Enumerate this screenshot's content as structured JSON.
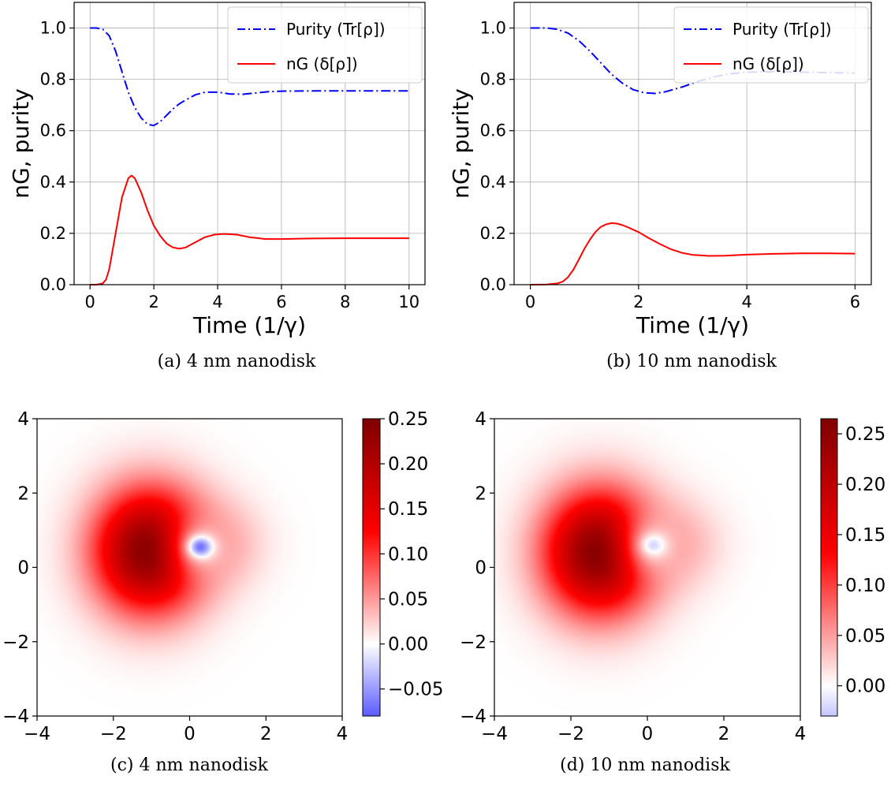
{
  "chart_data": [
    {
      "type": "line",
      "caption": "(a) 4 nm nanodisk",
      "xlabel": "Time (1/γ)",
      "ylabel": "nG, purity",
      "xlim": [
        -0.5,
        10.5
      ],
      "ylim": [
        0.0,
        1.1
      ],
      "xticks": [
        0,
        2,
        4,
        6,
        8,
        10
      ],
      "yticks": [
        0.0,
        0.2,
        0.4,
        0.6,
        0.8,
        1.0
      ],
      "grid": true,
      "legend_position": "top-right",
      "series": [
        {
          "name": "Purity (Tr[ρ])",
          "color": "#0000ff",
          "style": "dash-dot",
          "x": [
            0,
            0.2,
            0.4,
            0.6,
            0.8,
            1.0,
            1.2,
            1.4,
            1.6,
            1.8,
            2.0,
            2.2,
            2.4,
            2.6,
            2.8,
            3.0,
            3.3,
            3.6,
            4.0,
            4.4,
            4.8,
            5.2,
            5.6,
            6.0,
            7.0,
            8.0,
            9.0,
            10.0
          ],
          "y": [
            1.0,
            1.0,
            0.995,
            0.97,
            0.91,
            0.83,
            0.75,
            0.69,
            0.65,
            0.625,
            0.62,
            0.635,
            0.66,
            0.685,
            0.705,
            0.72,
            0.74,
            0.75,
            0.75,
            0.743,
            0.742,
            0.747,
            0.752,
            0.754,
            0.755,
            0.755,
            0.755,
            0.755
          ]
        },
        {
          "name": "nG (δ[ρ])",
          "color": "#ff0000",
          "style": "solid",
          "x": [
            0,
            0.2,
            0.4,
            0.5,
            0.6,
            0.8,
            1.0,
            1.2,
            1.3,
            1.4,
            1.6,
            1.8,
            2.0,
            2.2,
            2.4,
            2.6,
            2.8,
            3.0,
            3.3,
            3.6,
            3.9,
            4.2,
            4.6,
            5.0,
            5.5,
            6.0,
            7.0,
            8.0,
            9.0,
            10.0
          ],
          "y": [
            0.0,
            0.0,
            0.005,
            0.02,
            0.06,
            0.2,
            0.34,
            0.415,
            0.425,
            0.415,
            0.36,
            0.29,
            0.23,
            0.19,
            0.16,
            0.145,
            0.14,
            0.145,
            0.165,
            0.185,
            0.195,
            0.198,
            0.195,
            0.185,
            0.178,
            0.178,
            0.18,
            0.181,
            0.181,
            0.181
          ]
        }
      ]
    },
    {
      "type": "line",
      "caption": "(b) 10 nm nanodisk",
      "xlabel": "Time (1/γ)",
      "ylabel": "nG, purity",
      "xlim": [
        -0.3,
        6.3
      ],
      "ylim": [
        0.0,
        1.1
      ],
      "xticks": [
        0,
        2,
        4,
        6
      ],
      "yticks": [
        0.0,
        0.2,
        0.4,
        0.6,
        0.8,
        1.0
      ],
      "grid": true,
      "legend_position": "top-right",
      "series": [
        {
          "name": "Purity (Tr[ρ])",
          "color": "#0000ff",
          "style": "dash-dot",
          "x": [
            0,
            0.3,
            0.5,
            0.7,
            0.9,
            1.1,
            1.3,
            1.5,
            1.7,
            1.9,
            2.1,
            2.3,
            2.5,
            2.8,
            3.1,
            3.4,
            3.7,
            4.0,
            4.5,
            5.0,
            5.5,
            6.0
          ],
          "y": [
            1.0,
            1.0,
            0.995,
            0.98,
            0.95,
            0.91,
            0.865,
            0.82,
            0.785,
            0.76,
            0.748,
            0.745,
            0.752,
            0.77,
            0.792,
            0.81,
            0.822,
            0.828,
            0.83,
            0.828,
            0.826,
            0.825
          ]
        },
        {
          "name": "nG (δ[ρ])",
          "color": "#ff0000",
          "style": "solid",
          "x": [
            0,
            0.3,
            0.5,
            0.6,
            0.7,
            0.8,
            0.9,
            1.0,
            1.1,
            1.2,
            1.3,
            1.4,
            1.5,
            1.6,
            1.7,
            1.8,
            2.0,
            2.2,
            2.4,
            2.6,
            2.8,
            3.0,
            3.3,
            3.6,
            4.0,
            4.5,
            5.0,
            5.5,
            6.0
          ],
          "y": [
            0.0,
            0.001,
            0.005,
            0.012,
            0.03,
            0.06,
            0.1,
            0.14,
            0.175,
            0.205,
            0.225,
            0.235,
            0.24,
            0.238,
            0.232,
            0.224,
            0.205,
            0.18,
            0.158,
            0.138,
            0.124,
            0.116,
            0.112,
            0.113,
            0.117,
            0.12,
            0.122,
            0.122,
            0.121
          ]
        }
      ]
    },
    {
      "type": "heatmap",
      "caption": "(c) 4 nm nanodisk",
      "xlim": [
        -4,
        4
      ],
      "ylim": [
        -4,
        4
      ],
      "xticks": [
        -4,
        -2,
        0,
        2,
        4
      ],
      "yticks": [
        -4,
        -2,
        0,
        2,
        4
      ],
      "colormap": "bwr",
      "color_range": [
        -0.08,
        0.25
      ],
      "colorbar_ticks": [
        0.25,
        0.2,
        0.15,
        0.1,
        0.05,
        0.0,
        -0.05
      ],
      "colorbar_labels": [
        "0.25",
        "0.20",
        "0.15",
        "0.10",
        "0.05",
        "0.00",
        "−0.05"
      ],
      "features": [
        {
          "kind": "positive-crescent",
          "center": [
            -1.05,
            0.45
          ],
          "peak": 0.25
        },
        {
          "kind": "negative-blob",
          "center": [
            0.25,
            0.55
          ],
          "peak": -0.08
        }
      ]
    },
    {
      "type": "heatmap",
      "caption": "(d) 10 nm nanodisk",
      "xlim": [
        -4,
        4
      ],
      "ylim": [
        -4,
        4
      ],
      "xticks": [
        -4,
        -2,
        0,
        2,
        4
      ],
      "yticks": [
        -4,
        -2,
        0,
        2,
        4
      ],
      "colormap": "bwr",
      "color_range": [
        -0.03,
        0.265
      ],
      "colorbar_ticks": [
        0.25,
        0.2,
        0.15,
        0.1,
        0.05,
        0.0
      ],
      "colorbar_labels": [
        "0.25",
        "0.20",
        "0.15",
        "0.10",
        "0.05",
        "0.00"
      ],
      "features": [
        {
          "kind": "positive-crescent",
          "center": [
            -1.25,
            0.4
          ],
          "peak": 0.265
        },
        {
          "kind": "negative-blob",
          "center": [
            0.1,
            0.6
          ],
          "peak": -0.03
        }
      ]
    }
  ]
}
